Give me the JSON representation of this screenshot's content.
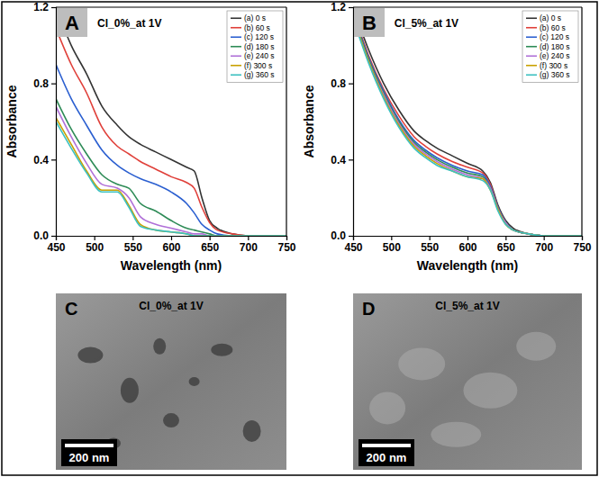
{
  "chart_data": [
    {
      "type": "line",
      "panel_label": "A",
      "title": "Cl_0%_at 1V",
      "x_label": "Wavelength (nm)",
      "y_label": "Absorbance",
      "xlim": [
        450,
        750
      ],
      "xticks": [
        450,
        500,
        550,
        600,
        650,
        700,
        750
      ],
      "ylim": [
        0,
        1.2
      ],
      "yticks": [
        {
          "value": 0,
          "label": "0.0"
        },
        0.4,
        0.8,
        1.2
      ],
      "grid": false,
      "legend": "top-right",
      "x": [
        450,
        470,
        490,
        510,
        530,
        545,
        560,
        580,
        600,
        620,
        630,
        640,
        650,
        660,
        680,
        700,
        750
      ],
      "series": [
        {
          "name": "(a) 0 s",
          "color": "#333333",
          "values": [
            1.2,
            1.0,
            0.85,
            0.68,
            0.58,
            0.52,
            0.48,
            0.44,
            0.4,
            0.36,
            0.34,
            0.2,
            0.08,
            0.04,
            0.01,
            0,
            0
          ]
        },
        {
          "name": "(b) 60 s",
          "color": "#e0403a",
          "values": [
            1.09,
            0.9,
            0.75,
            0.57,
            0.47,
            0.43,
            0.39,
            0.35,
            0.31,
            0.28,
            0.25,
            0.15,
            0.07,
            0.03,
            0.01,
            0,
            0
          ]
        },
        {
          "name": "(c) 120 s",
          "color": "#2b5fd0",
          "values": [
            0.9,
            0.72,
            0.58,
            0.45,
            0.37,
            0.33,
            0.3,
            0.27,
            0.23,
            0.17,
            0.12,
            0.06,
            0.03,
            0.01,
            0,
            0,
            0
          ]
        },
        {
          "name": "(d) 180 s",
          "color": "#2e8b57",
          "values": [
            0.72,
            0.56,
            0.43,
            0.32,
            0.27,
            0.25,
            0.17,
            0.13,
            0.08,
            0.04,
            0.03,
            0.02,
            0.01,
            0,
            0,
            0,
            0
          ]
        },
        {
          "name": "(e) 240 s",
          "color": "#b070d8",
          "values": [
            0.68,
            0.52,
            0.38,
            0.27,
            0.25,
            0.2,
            0.1,
            0.06,
            0.04,
            0.02,
            0.01,
            0.01,
            0,
            0,
            0,
            0,
            0
          ]
        },
        {
          "name": "(f) 300 s",
          "color": "#c8a000",
          "values": [
            0.62,
            0.48,
            0.34,
            0.24,
            0.24,
            0.16,
            0.06,
            0.03,
            0.02,
            0.01,
            0,
            0,
            0,
            0,
            0,
            0,
            0
          ]
        },
        {
          "name": "(g) 360 s",
          "color": "#3cc0c0",
          "values": [
            0.6,
            0.46,
            0.33,
            0.23,
            0.23,
            0.15,
            0.05,
            0.03,
            0.02,
            0.01,
            0,
            0,
            0,
            0,
            0,
            0,
            0
          ]
        }
      ]
    },
    {
      "type": "line",
      "panel_label": "B",
      "title": "Cl_5%_at 1V",
      "x_label": "Wavelength (nm)",
      "y_label": "Absorbance",
      "xlim": [
        450,
        750
      ],
      "xticks": [
        450,
        500,
        550,
        600,
        650,
        700,
        750
      ],
      "ylim": [
        0,
        1.2
      ],
      "yticks": [
        {
          "value": 0,
          "label": "0.0"
        },
        0.4,
        0.8,
        1.2
      ],
      "grid": false,
      "legend": "top-right",
      "x": [
        450,
        470,
        490,
        510,
        530,
        545,
        560,
        580,
        600,
        620,
        630,
        640,
        650,
        660,
        680,
        700,
        750
      ],
      "series": [
        {
          "name": "(a) 0 s",
          "color": "#333333",
          "values": [
            1.2,
            0.98,
            0.8,
            0.66,
            0.55,
            0.5,
            0.46,
            0.42,
            0.38,
            0.34,
            0.28,
            0.16,
            0.08,
            0.04,
            0.01,
            0,
            0
          ]
        },
        {
          "name": "(b) 60 s",
          "color": "#e0403a",
          "values": [
            1.18,
            0.95,
            0.77,
            0.63,
            0.52,
            0.47,
            0.43,
            0.39,
            0.36,
            0.33,
            0.27,
            0.15,
            0.07,
            0.03,
            0.01,
            0,
            0
          ]
        },
        {
          "name": "(c) 120 s",
          "color": "#2b5fd0",
          "values": [
            1.17,
            0.94,
            0.76,
            0.61,
            0.5,
            0.45,
            0.41,
            0.37,
            0.34,
            0.32,
            0.26,
            0.15,
            0.07,
            0.03,
            0.01,
            0,
            0
          ]
        },
        {
          "name": "(d) 180 s",
          "color": "#2e8b57",
          "values": [
            1.16,
            0.93,
            0.75,
            0.6,
            0.49,
            0.44,
            0.4,
            0.36,
            0.33,
            0.31,
            0.25,
            0.14,
            0.07,
            0.03,
            0.01,
            0,
            0
          ]
        },
        {
          "name": "(e) 240 s",
          "color": "#b070d8",
          "values": [
            1.15,
            0.92,
            0.74,
            0.59,
            0.48,
            0.43,
            0.39,
            0.35,
            0.32,
            0.3,
            0.25,
            0.14,
            0.07,
            0.03,
            0.01,
            0,
            0
          ]
        },
        {
          "name": "(f) 300 s",
          "color": "#c8a000",
          "values": [
            1.15,
            0.92,
            0.73,
            0.58,
            0.47,
            0.42,
            0.38,
            0.34,
            0.31,
            0.3,
            0.24,
            0.14,
            0.06,
            0.03,
            0.01,
            0,
            0
          ]
        },
        {
          "name": "(g) 360 s",
          "color": "#3cc0c0",
          "values": [
            1.14,
            0.91,
            0.72,
            0.57,
            0.46,
            0.41,
            0.37,
            0.34,
            0.31,
            0.29,
            0.24,
            0.13,
            0.06,
            0.03,
            0.01,
            0,
            0
          ]
        }
      ]
    }
  ],
  "images": [
    {
      "panel_label": "C",
      "title": "Cl_0%_at 1V",
      "scale_bar": "200 nm"
    },
    {
      "panel_label": "D",
      "title": "Cl_5%_at 1V",
      "scale_bar": "200 nm"
    }
  ]
}
